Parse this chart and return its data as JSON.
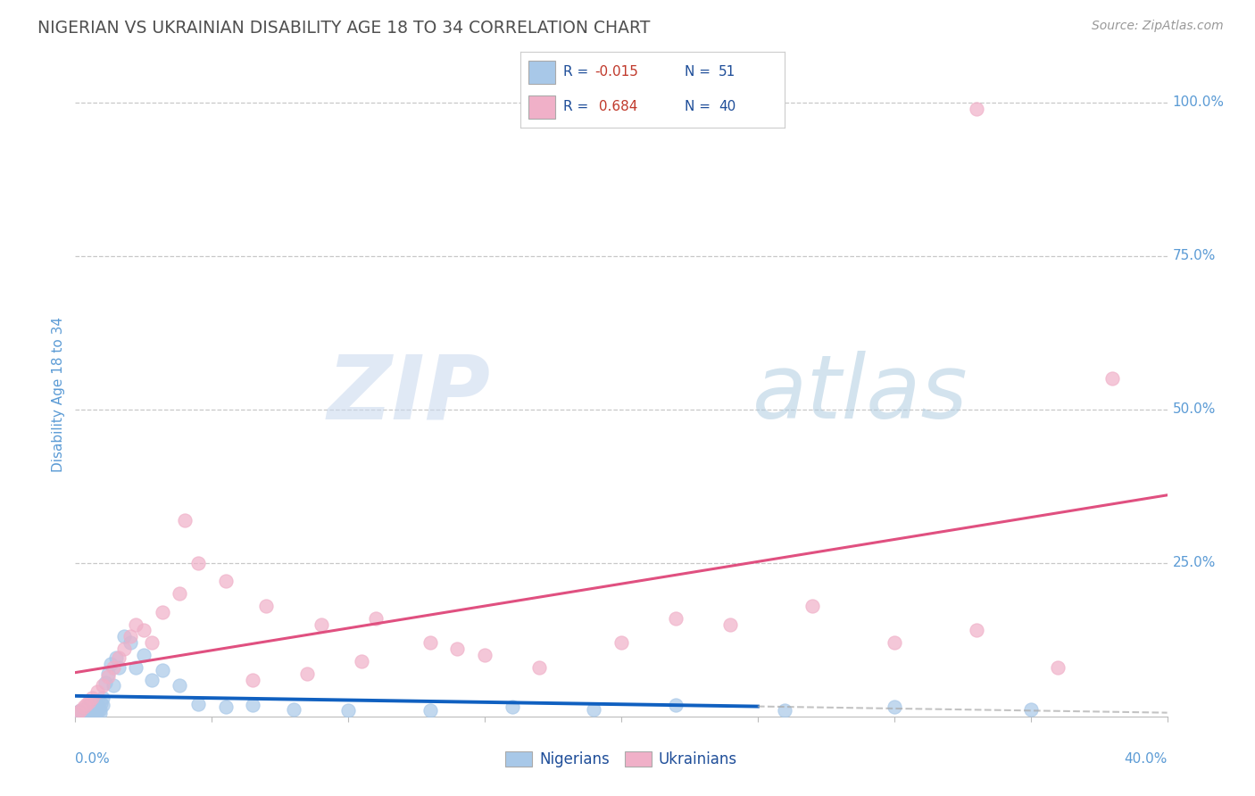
{
  "title": "NIGERIAN VS UKRAINIAN DISABILITY AGE 18 TO 34 CORRELATION CHART",
  "source": "Source: ZipAtlas.com",
  "ylabel_label": "Disability Age 18 to 34",
  "legend_blue_label": "Nigerians",
  "legend_pink_label": "Ukrainians",
  "R_blue": -0.015,
  "N_blue": 51,
  "R_pink": 0.684,
  "N_pink": 40,
  "blue_color": "#a8c8e8",
  "pink_color": "#f0b0c8",
  "blue_line_color": "#1060c0",
  "pink_line_color": "#e05080",
  "title_color": "#505050",
  "axis_label_color": "#5b9bd5",
  "legend_text_color": "#1f4e99",
  "watermark_color_zip": "#c0cce0",
  "watermark_color_atlas": "#b0d0e8",
  "grid_color": "#c8c8c8",
  "xmin": 0.0,
  "xmax": 40.0,
  "ymin": 0.0,
  "ymax": 105.0,
  "ytick_vals": [
    0,
    25,
    50,
    75,
    100
  ],
  "ytick_labels": [
    "",
    "25.0%",
    "50.0%",
    "75.0%",
    "100.0%"
  ],
  "nigerians_x": [
    0.1,
    0.15,
    0.2,
    0.25,
    0.3,
    0.35,
    0.4,
    0.45,
    0.5,
    0.5,
    0.55,
    0.6,
    0.6,
    0.65,
    0.7,
    0.7,
    0.7,
    0.75,
    0.8,
    0.8,
    0.85,
    0.9,
    0.9,
    0.95,
    1.0,
    1.0,
    1.1,
    1.2,
    1.3,
    1.4,
    1.5,
    1.6,
    1.8,
    2.0,
    2.2,
    2.5,
    2.8,
    3.2,
    3.8,
    4.5,
    5.5,
    6.5,
    8.0,
    10.0,
    13.0,
    16.0,
    19.0,
    22.0,
    26.0,
    30.0,
    35.0
  ],
  "nigerians_y": [
    0.5,
    0.8,
    1.0,
    0.5,
    0.8,
    1.2,
    0.6,
    1.5,
    0.5,
    1.8,
    1.0,
    0.5,
    1.5,
    1.2,
    0.6,
    1.8,
    2.5,
    1.0,
    0.8,
    2.0,
    1.5,
    0.5,
    1.2,
    2.2,
    1.8,
    3.0,
    5.5,
    7.0,
    8.5,
    5.0,
    9.5,
    8.0,
    13.0,
    12.0,
    8.0,
    10.0,
    6.0,
    7.5,
    5.0,
    2.0,
    1.5,
    1.8,
    1.2,
    1.0,
    1.0,
    1.5,
    1.2,
    1.8,
    1.0,
    1.5,
    1.2
  ],
  "ukrainians_x": [
    0.1,
    0.2,
    0.3,
    0.4,
    0.5,
    0.6,
    0.8,
    1.0,
    1.2,
    1.4,
    1.6,
    1.8,
    2.0,
    2.2,
    2.5,
    2.8,
    3.2,
    3.8,
    4.5,
    5.5,
    7.0,
    9.0,
    11.0,
    13.0,
    15.0,
    17.0,
    20.0,
    22.0,
    24.0,
    27.0,
    30.0,
    33.0,
    36.0,
    38.0,
    4.0,
    6.5,
    8.5,
    10.5,
    14.0,
    33.0
  ],
  "ukrainians_y": [
    0.5,
    1.0,
    1.5,
    2.0,
    2.5,
    3.0,
    4.0,
    5.0,
    6.5,
    8.0,
    9.5,
    11.0,
    13.0,
    15.0,
    14.0,
    12.0,
    17.0,
    20.0,
    25.0,
    22.0,
    18.0,
    15.0,
    16.0,
    12.0,
    10.0,
    8.0,
    12.0,
    16.0,
    15.0,
    18.0,
    12.0,
    14.0,
    8.0,
    55.0,
    32.0,
    6.0,
    7.0,
    9.0,
    11.0,
    99.0
  ],
  "blue_reg_x0": 0.0,
  "blue_reg_y0": 4.0,
  "blue_reg_x1": 25.0,
  "blue_reg_y1": 3.5,
  "blue_reg_x1_dash": 40.0,
  "blue_reg_y1_dash": 3.3,
  "pink_reg_x0": 0.0,
  "pink_reg_y0": 1.0,
  "pink_reg_x1": 40.0,
  "pink_reg_y1": 57.0
}
